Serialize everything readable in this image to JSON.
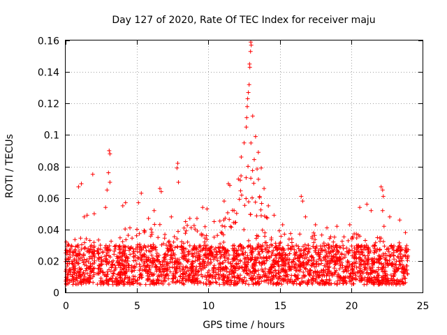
{
  "chart_data": {
    "type": "scatter",
    "title": "Day 127 of 2020, Rate Of TEC Index for receiver maju",
    "xlabel": "GPS time / hours",
    "ylabel": "ROTI / TECUs",
    "xlim": [
      0,
      25
    ],
    "ylim": [
      0,
      0.16
    ],
    "x_ticks": [
      "0",
      "5",
      "10",
      "15",
      "20",
      "25"
    ],
    "y_ticks": [
      "0",
      "0.02",
      "0.04",
      "0.06",
      "0.08",
      "0.1",
      "0.12",
      "0.14",
      "0.16"
    ],
    "grid": true,
    "marker": "+",
    "marker_color": "#ff0000",
    "series": [
      {
        "name": "ROTI",
        "description": "dense scatter of ROTI samples across all satellites; baseline roughly 0.005–0.03 TECU/min from 0 to 24 h with a gap near 2.1 h and a storm-like enhancement peaking near 12.8 h",
        "baseline": {
          "x_range": [
            0,
            24
          ],
          "y_range": [
            0.005,
            0.03
          ]
        },
        "envelope": [
          [
            0.0,
            0.032
          ],
          [
            1.0,
            0.035
          ],
          [
            2.0,
            0.033
          ],
          [
            3.0,
            0.035
          ],
          [
            4.0,
            0.04
          ],
          [
            5.0,
            0.042
          ],
          [
            6.0,
            0.043
          ],
          [
            7.0,
            0.044
          ],
          [
            8.0,
            0.045
          ],
          [
            9.0,
            0.043
          ],
          [
            10.0,
            0.042
          ],
          [
            11.0,
            0.048
          ],
          [
            12.0,
            0.06
          ],
          [
            12.5,
            0.085
          ],
          [
            12.8,
            0.1
          ],
          [
            13.2,
            0.09
          ],
          [
            13.6,
            0.07
          ],
          [
            14.0,
            0.05
          ],
          [
            15.0,
            0.04
          ],
          [
            16.0,
            0.038
          ],
          [
            17.0,
            0.04
          ],
          [
            18.0,
            0.038
          ],
          [
            19.0,
            0.035
          ],
          [
            20.0,
            0.038
          ],
          [
            21.0,
            0.036
          ],
          [
            22.0,
            0.035
          ],
          [
            23.0,
            0.033
          ],
          [
            24.0,
            0.03
          ]
        ],
        "outliers": [
          [
            0.05,
            0.032
          ],
          [
            0.9,
            0.067
          ],
          [
            1.1,
            0.069
          ],
          [
            1.3,
            0.048
          ],
          [
            1.5,
            0.049
          ],
          [
            1.7,
            0.033
          ],
          [
            1.9,
            0.075
          ],
          [
            2.0,
            0.05
          ],
          [
            2.8,
            0.054
          ],
          [
            2.9,
            0.065
          ],
          [
            3.0,
            0.076
          ],
          [
            3.05,
            0.09
          ],
          [
            3.1,
            0.088
          ],
          [
            3.1,
            0.07
          ],
          [
            4.0,
            0.055
          ],
          [
            4.2,
            0.057
          ],
          [
            4.5,
            0.041
          ],
          [
            5.1,
            0.057
          ],
          [
            5.3,
            0.063
          ],
          [
            5.8,
            0.047
          ],
          [
            6.2,
            0.052
          ],
          [
            6.6,
            0.066
          ],
          [
            6.7,
            0.064
          ],
          [
            7.4,
            0.048
          ],
          [
            7.8,
            0.079
          ],
          [
            7.85,
            0.082
          ],
          [
            7.9,
            0.07
          ],
          [
            8.4,
            0.045
          ],
          [
            8.7,
            0.047
          ],
          [
            9.2,
            0.047
          ],
          [
            9.6,
            0.054
          ],
          [
            9.9,
            0.053
          ],
          [
            10.4,
            0.045
          ],
          [
            11.1,
            0.058
          ],
          [
            11.4,
            0.069
          ],
          [
            11.5,
            0.068
          ],
          [
            11.8,
            0.052
          ],
          [
            12.1,
            0.072
          ],
          [
            12.3,
            0.086
          ],
          [
            12.5,
            0.095
          ],
          [
            12.65,
            0.105
          ],
          [
            12.68,
            0.111
          ],
          [
            12.72,
            0.118
          ],
          [
            12.75,
            0.123
          ],
          [
            12.8,
            0.127
          ],
          [
            12.85,
            0.132
          ],
          [
            12.88,
            0.145
          ],
          [
            12.9,
            0.143
          ],
          [
            12.95,
            0.153
          ],
          [
            12.97,
            0.159
          ],
          [
            13.0,
            0.157
          ],
          [
            13.1,
            0.112
          ],
          [
            13.3,
            0.099
          ],
          [
            13.5,
            0.089
          ],
          [
            13.7,
            0.079
          ],
          [
            13.9,
            0.066
          ],
          [
            14.2,
            0.055
          ],
          [
            14.6,
            0.049
          ],
          [
            15.2,
            0.043
          ],
          [
            16.5,
            0.061
          ],
          [
            16.6,
            0.058
          ],
          [
            16.8,
            0.048
          ],
          [
            17.5,
            0.043
          ],
          [
            18.3,
            0.041
          ],
          [
            19.0,
            0.042
          ],
          [
            19.9,
            0.043
          ],
          [
            20.6,
            0.054
          ],
          [
            21.1,
            0.056
          ],
          [
            21.4,
            0.052
          ],
          [
            22.1,
            0.067
          ],
          [
            22.2,
            0.065
          ],
          [
            22.25,
            0.061
          ],
          [
            22.2,
            0.052
          ],
          [
            22.3,
            0.042
          ],
          [
            22.7,
            0.048
          ],
          [
            23.4,
            0.046
          ],
          [
            23.8,
            0.038
          ]
        ]
      }
    ]
  }
}
